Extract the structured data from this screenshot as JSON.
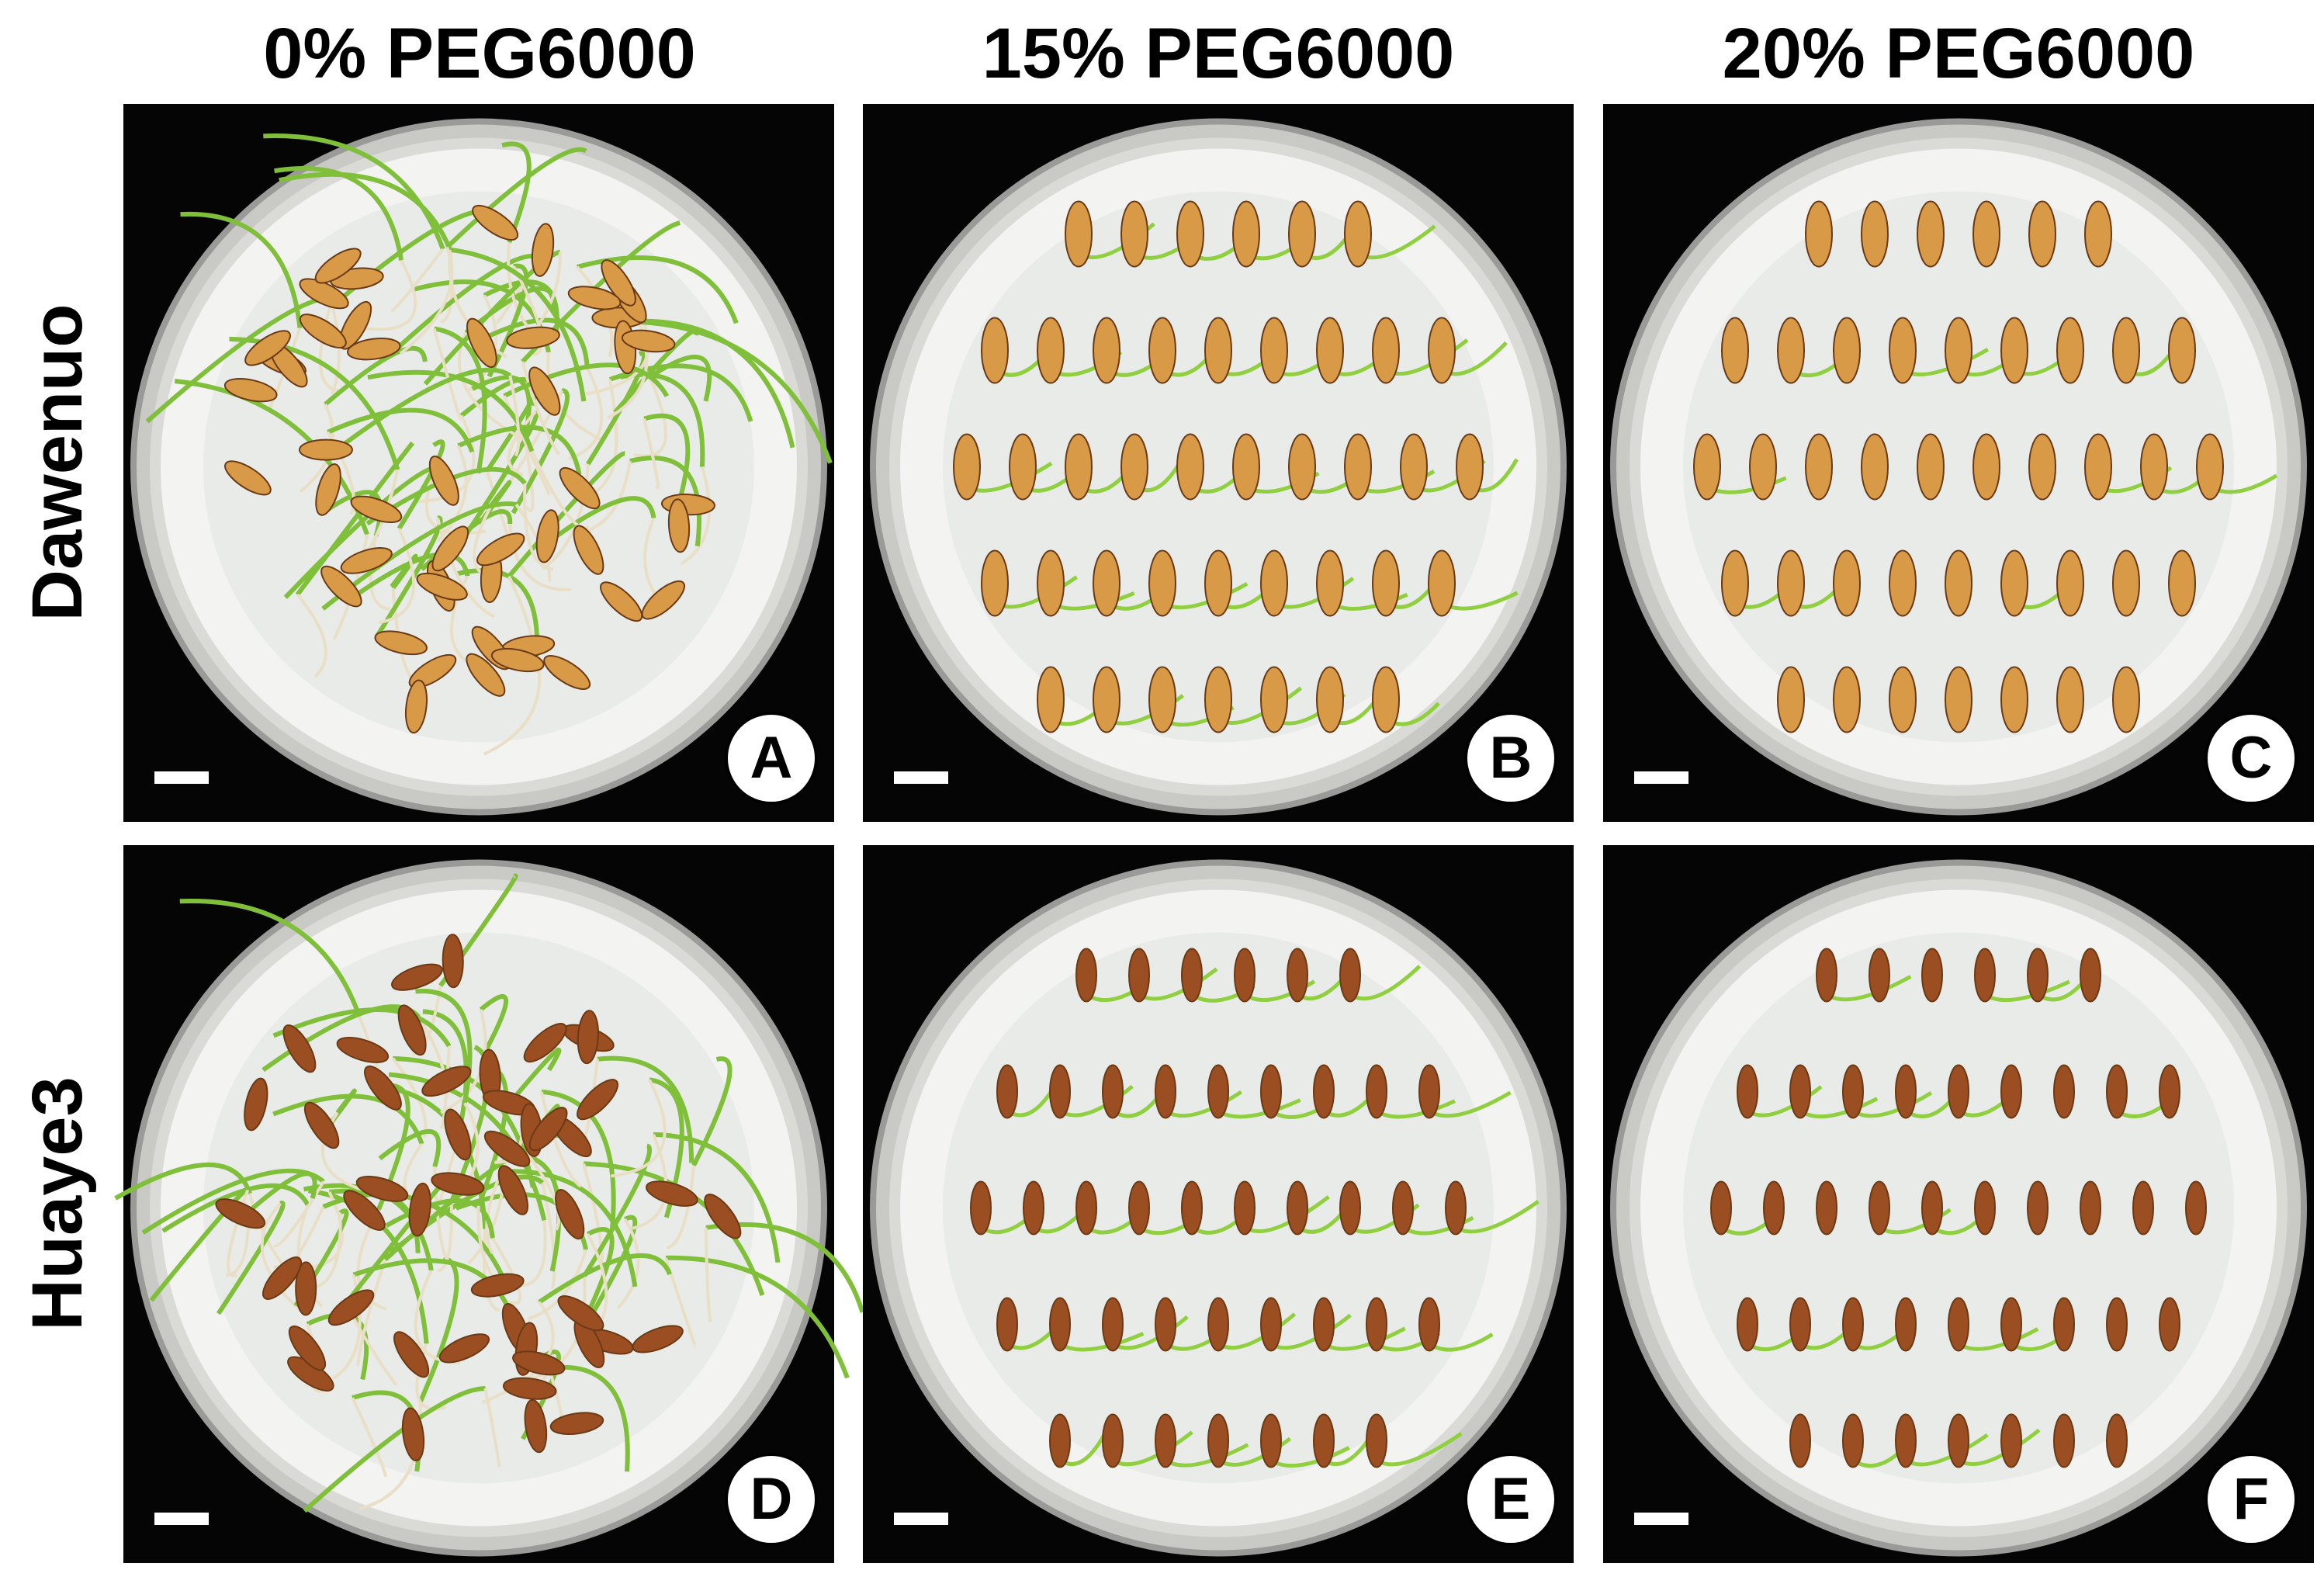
{
  "columns": [
    "0% PEG6000",
    "15% PEG6000",
    "20% PEG6000"
  ],
  "rows": [
    "Dawenuo",
    "Huaye3"
  ],
  "panels": [
    "A",
    "B",
    "C",
    "D",
    "E",
    "F"
  ]
}
